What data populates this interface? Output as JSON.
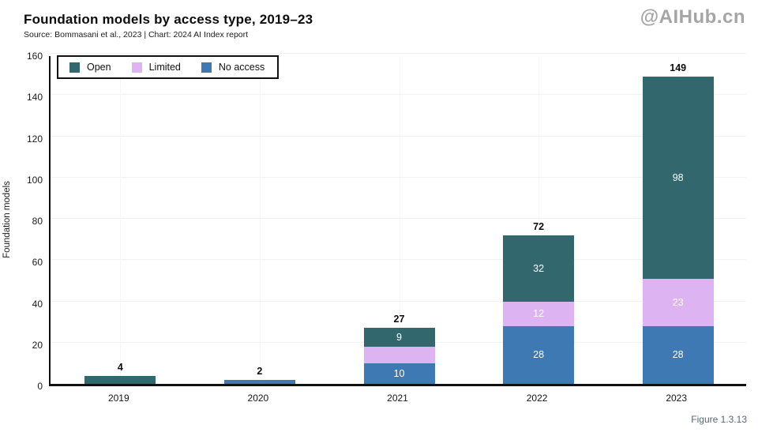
{
  "header": {
    "title": "Foundation models by access type, 2019–23",
    "subtitle": "Source: Bommasani et al., 2023 | Chart: 2024 AI Index report",
    "watermark": "@AIHub.cn"
  },
  "figure_label": "Figure 1.3.13",
  "chart_data": {
    "type": "bar",
    "stacked": true,
    "title": "Foundation models by access type, 2019–23",
    "xlabel": "",
    "ylabel": "Foundation models",
    "ylim": [
      0,
      160
    ],
    "ytick_step": 20,
    "grid": true,
    "legend_position": "top-left",
    "legend_order": [
      "Open",
      "Limited",
      "No access"
    ],
    "categories": [
      "2019",
      "2020",
      "2021",
      "2022",
      "2023"
    ],
    "series": [
      {
        "name": "No access",
        "color": "#3e79b4",
        "values": [
          0,
          2,
          10,
          28,
          28
        ],
        "labels": [
          "",
          "",
          "10",
          "28",
          "28"
        ]
      },
      {
        "name": "Limited",
        "color": "#ddb3f2",
        "values": [
          0,
          0,
          8,
          12,
          23
        ],
        "labels": [
          "",
          "",
          "",
          "12",
          "23"
        ]
      },
      {
        "name": "Open",
        "color": "#31676d",
        "values": [
          4,
          0,
          9,
          32,
          98
        ],
        "labels": [
          "",
          "",
          "9",
          "32",
          "98"
        ]
      }
    ],
    "totals": [
      4,
      2,
      27,
      72,
      149
    ]
  }
}
